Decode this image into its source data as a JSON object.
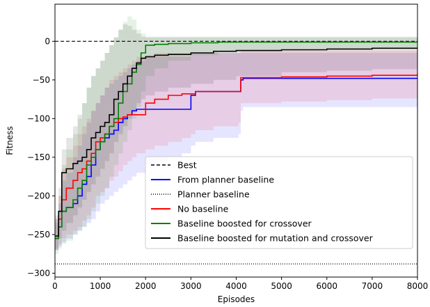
{
  "chart_data": {
    "type": "line",
    "title": "",
    "xlabel": "Episodes",
    "ylabel": "Fitness",
    "xlim": [
      0,
      8000
    ],
    "ylim": [
      -305,
      48
    ],
    "xticks": [
      0,
      1000,
      2000,
      3000,
      4000,
      5000,
      6000,
      7000,
      8000
    ],
    "xtick_labels": [
      "0",
      "1000",
      "2000",
      "3000",
      "4000",
      "5000",
      "6000",
      "7000",
      "8000"
    ],
    "yticks": [
      0,
      -50,
      -100,
      -150,
      -200,
      -250,
      -300
    ],
    "ytick_labels": [
      "0",
      "−50",
      "−100",
      "−150",
      "−200",
      "−250",
      "−300"
    ],
    "grid": false,
    "legend_position": "lower-right",
    "hlines": [
      {
        "name": "Best",
        "y": 0,
        "color": "#000000",
        "style": "dashed"
      },
      {
        "name": "Planner baseline",
        "y": -288,
        "color": "#000000",
        "style": "dotted"
      }
    ],
    "series": [
      {
        "name": "From planner baseline",
        "color": "#0000ff",
        "step": true,
        "x": [
          0,
          80,
          150,
          250,
          400,
          500,
          600,
          700,
          800,
          900,
          1000,
          1100,
          1200,
          1300,
          1400,
          1500,
          1600,
          1700,
          1800,
          2000,
          2200,
          2500,
          2800,
          3000,
          3100,
          3500,
          4050,
          4100,
          4150,
          5000,
          6000,
          7000,
          8000
        ],
        "y": [
          -255,
          -240,
          -220,
          -215,
          -210,
          -200,
          -185,
          -175,
          -160,
          -140,
          -130,
          -125,
          -120,
          -115,
          -105,
          -100,
          -95,
          -90,
          -88,
          -88,
          -88,
          -88,
          -88,
          -70,
          -65,
          -65,
          -65,
          -50,
          -48,
          -48,
          -48,
          -48,
          -48
        ],
        "band_upper": [
          -235,
          -210,
          -180,
          -170,
          -150,
          -135,
          -120,
          -105,
          -90,
          -80,
          -70,
          -60,
          -55,
          -50,
          -45,
          -40,
          -35,
          -30,
          -25,
          -20,
          -20,
          -20,
          -20,
          -15,
          -15,
          -15,
          -15,
          -15,
          -15,
          -15,
          -15,
          -15,
          -15
        ],
        "band_lower": [
          -270,
          -265,
          -260,
          -255,
          -250,
          -245,
          -240,
          -235,
          -230,
          -220,
          -210,
          -205,
          -200,
          -195,
          -190,
          -185,
          -180,
          -175,
          -170,
          -160,
          -155,
          -150,
          -145,
          -135,
          -130,
          -125,
          -120,
          -90,
          -85,
          -85,
          -85,
          -85,
          -85
        ]
      },
      {
        "name": "No baseline",
        "color": "#ff0000",
        "step": true,
        "x": [
          0,
          80,
          150,
          250,
          400,
          500,
          600,
          700,
          800,
          900,
          1000,
          1100,
          1200,
          1300,
          1400,
          1500,
          1600,
          1700,
          1800,
          2000,
          2200,
          2500,
          2800,
          3000,
          3100,
          3500,
          4050,
          4100,
          5000,
          6000,
          7000,
          8000
        ],
        "y": [
          -255,
          -230,
          -205,
          -190,
          -180,
          -170,
          -165,
          -155,
          -145,
          -130,
          -125,
          -120,
          -110,
          -105,
          -100,
          -98,
          -95,
          -95,
          -95,
          -80,
          -75,
          -70,
          -68,
          -68,
          -65,
          -65,
          -65,
          -47,
          -46,
          -45,
          -44,
          -42
        ],
        "band_upper": [
          -230,
          -200,
          -165,
          -150,
          -135,
          -120,
          -110,
          -100,
          -90,
          -80,
          -70,
          -60,
          -50,
          -45,
          -40,
          -35,
          -30,
          -25,
          -20,
          -18,
          -15,
          -15,
          -15,
          -15,
          -15,
          -15,
          -15,
          -12,
          -12,
          -12,
          -12,
          -12
        ],
        "band_lower": [
          -268,
          -262,
          -255,
          -250,
          -245,
          -240,
          -232,
          -225,
          -215,
          -200,
          -195,
          -190,
          -180,
          -175,
          -168,
          -160,
          -155,
          -150,
          -145,
          -140,
          -135,
          -130,
          -125,
          -120,
          -115,
          -110,
          -105,
          -80,
          -78,
          -76,
          -74,
          -72
        ]
      },
      {
        "name": "Baseline boosted for crossover",
        "color": "#008000",
        "step": true,
        "x": [
          0,
          80,
          150,
          250,
          400,
          500,
          600,
          700,
          800,
          900,
          1000,
          1100,
          1200,
          1300,
          1400,
          1500,
          1600,
          1700,
          1800,
          1900,
          2000,
          2200,
          2500,
          3000,
          3600,
          4000,
          5000,
          6000,
          7000,
          8000
        ],
        "y": [
          -255,
          -240,
          -220,
          -215,
          -205,
          -190,
          -180,
          -160,
          -150,
          -140,
          -130,
          -120,
          -110,
          -100,
          -80,
          -65,
          -55,
          -40,
          -30,
          -15,
          -5,
          -4,
          -3,
          -2,
          -1,
          -1,
          -1,
          -1,
          -1,
          -1
        ],
        "band_upper": [
          -230,
          -200,
          -160,
          -140,
          -120,
          -100,
          -80,
          -60,
          -45,
          -35,
          -25,
          -15,
          -5,
          5,
          15,
          25,
          32,
          28,
          15,
          10,
          6,
          6,
          6,
          6,
          6,
          6,
          6,
          6,
          6,
          6
        ],
        "band_lower": [
          -275,
          -268,
          -262,
          -258,
          -250,
          -245,
          -240,
          -230,
          -220,
          -210,
          -200,
          -190,
          -175,
          -160,
          -145,
          -130,
          -115,
          -100,
          -85,
          -65,
          -45,
          -35,
          -25,
          -18,
          -14,
          -12,
          -10,
          -9,
          -9,
          -9
        ]
      },
      {
        "name": "Baseline boosted for mutation and crossover",
        "color": "#000000",
        "step": true,
        "x": [
          0,
          80,
          150,
          250,
          400,
          500,
          600,
          700,
          800,
          900,
          1000,
          1100,
          1200,
          1300,
          1400,
          1500,
          1600,
          1700,
          1800,
          1900,
          2000,
          2200,
          2500,
          3000,
          3500,
          4000,
          5000,
          6000,
          7000,
          8000
        ],
        "y": [
          -252,
          -220,
          -170,
          -165,
          -158,
          -155,
          -150,
          -140,
          -125,
          -118,
          -110,
          -105,
          -95,
          -75,
          -65,
          -55,
          -45,
          -35,
          -28,
          -22,
          -20,
          -18,
          -17,
          -15,
          -13,
          -12,
          -11,
          -10,
          -9,
          -8
        ],
        "band_upper": [
          -225,
          -190,
          -140,
          -125,
          -110,
          -95,
          -80,
          -60,
          -45,
          -35,
          -25,
          -15,
          -5,
          5,
          15,
          22,
          20,
          15,
          10,
          6,
          5,
          5,
          5,
          5,
          5,
          5,
          5,
          5,
          5,
          5
        ],
        "band_lower": [
          -270,
          -255,
          -245,
          -235,
          -225,
          -215,
          -205,
          -195,
          -185,
          -175,
          -165,
          -155,
          -145,
          -130,
          -120,
          -110,
          -100,
          -90,
          -80,
          -75,
          -70,
          -65,
          -60,
          -55,
          -50,
          -45,
          -40,
          -38,
          -36,
          -35
        ]
      }
    ],
    "legend": [
      {
        "label": "Best",
        "color": "#000000",
        "style": "dashed"
      },
      {
        "label": "From planner baseline",
        "color": "#0000ff",
        "style": "solid"
      },
      {
        "label": "Planner baseline",
        "color": "#000000",
        "style": "dotted"
      },
      {
        "label": "No baseline",
        "color": "#ff0000",
        "style": "solid"
      },
      {
        "label": "Baseline boosted for crossover",
        "color": "#008000",
        "style": "solid"
      },
      {
        "label": "Baseline boosted for mutation and crossover",
        "color": "#000000",
        "style": "solid"
      }
    ]
  }
}
